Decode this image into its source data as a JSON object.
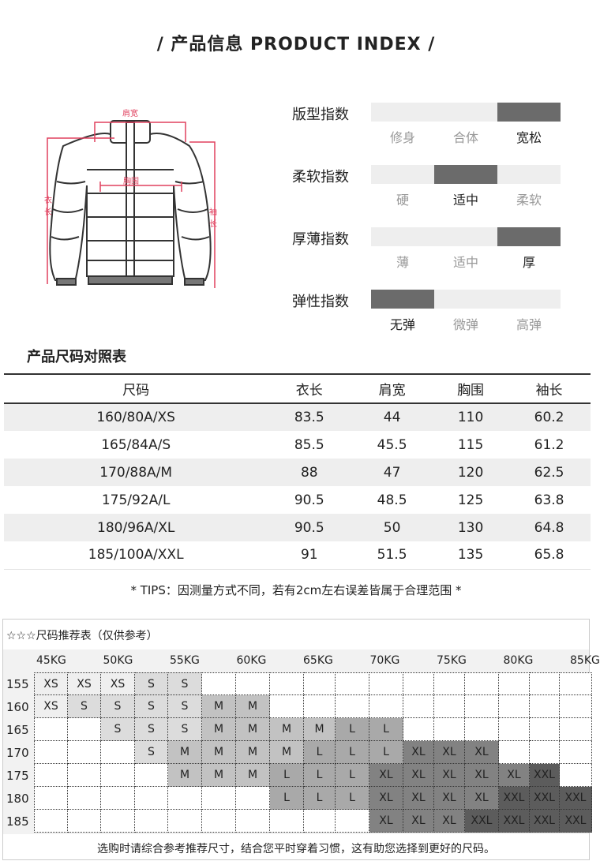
{
  "header": {
    "title": "/  产品信息 PRODUCT INDEX  /"
  },
  "diagram": {
    "shoulder": "肩宽",
    "chest": "胸围",
    "length": "衣长",
    "sleeve": "袖长"
  },
  "indices": [
    {
      "label": "版型指数",
      "options": [
        "修身",
        "合体",
        "宽松"
      ],
      "selected": 2
    },
    {
      "label": "柔软指数",
      "options": [
        "硬",
        "适中",
        "柔软"
      ],
      "selected": 1
    },
    {
      "label": "厚薄指数",
      "options": [
        "薄",
        "适中",
        "厚"
      ],
      "selected": 2
    },
    {
      "label": "弹性指数",
      "options": [
        "无弹",
        "微弹",
        "高弹"
      ],
      "selected": 0
    }
  ],
  "size_table": {
    "title": "产品尺码对照表",
    "headers": [
      "尺码",
      "衣长",
      "肩宽",
      "胸围",
      "袖长"
    ],
    "rows": [
      [
        "160/80A/XS",
        "83.5",
        "44",
        "110",
        "60.2"
      ],
      [
        "165/84A/S",
        "85.5",
        "45.5",
        "115",
        "61.2"
      ],
      [
        "170/88A/M",
        "88",
        "47",
        "120",
        "62.5"
      ],
      [
        "175/92A/L",
        "90.5",
        "48.5",
        "125",
        "63.8"
      ],
      [
        "180/96A/XL",
        "90.5",
        "50",
        "130",
        "64.8"
      ],
      [
        "185/100A/XXL",
        "91",
        "51.5",
        "135",
        "65.8"
      ]
    ],
    "tips": "* TIPS：因测量方式不同，若有2cm左右误差皆属于合理范围 *"
  },
  "recommend": {
    "title": "☆☆☆尺码推荐表（仅供参考）",
    "weights": [
      "45KG",
      "50KG",
      "55KG",
      "60KG",
      "65KG",
      "70KG",
      "75KG",
      "80KG",
      "85KG"
    ],
    "heights": [
      "155",
      "160",
      "165",
      "170",
      "175",
      "180",
      "185"
    ],
    "grid": [
      [
        "XS",
        "XS",
        "XS",
        "S",
        "S",
        "",
        "",
        "",
        "",
        "",
        "",
        "",
        "",
        "",
        "",
        "",
        ""
      ],
      [
        "XS",
        "S",
        "S",
        "S",
        "S",
        "M",
        "M",
        "",
        "",
        "",
        "",
        "",
        "",
        "",
        "",
        "",
        ""
      ],
      [
        "",
        "",
        "S",
        "S",
        "S",
        "M",
        "M",
        "M",
        "M",
        "L",
        "L",
        "",
        "",
        "",
        "",
        "",
        ""
      ],
      [
        "",
        "",
        "",
        "S",
        "M",
        "M",
        "M",
        "M",
        "L",
        "L",
        "L",
        "XL",
        "XL",
        "XL",
        "",
        "",
        ""
      ],
      [
        "",
        "",
        "",
        "",
        "M",
        "M",
        "M",
        "L",
        "L",
        "L",
        "XL",
        "XL",
        "XL",
        "XL",
        "XL",
        "XXL",
        ""
      ],
      [
        "",
        "",
        "",
        "",
        "",
        "",
        "",
        "L",
        "L",
        "L",
        "XL",
        "XL",
        "XL",
        "XL",
        "XXL",
        "XXL",
        "XXL"
      ],
      [
        "",
        "",
        "",
        "",
        "",
        "",
        "",
        "",
        "",
        "",
        "XL",
        "XL",
        "XL",
        "XXL",
        "XXL",
        "XXL",
        "XXL"
      ]
    ],
    "colors": {
      "XS": "#efefef",
      "S": "#dcdcdc",
      "M": "#c2c2c2",
      "L": "#a9a9a9",
      "XL": "#828282",
      "XXL": "#5c5c5c"
    },
    "note": "选购时请综合参考推荐尺寸，结合您平时穿着习惯，这有助您选择到更好的尺码。"
  }
}
